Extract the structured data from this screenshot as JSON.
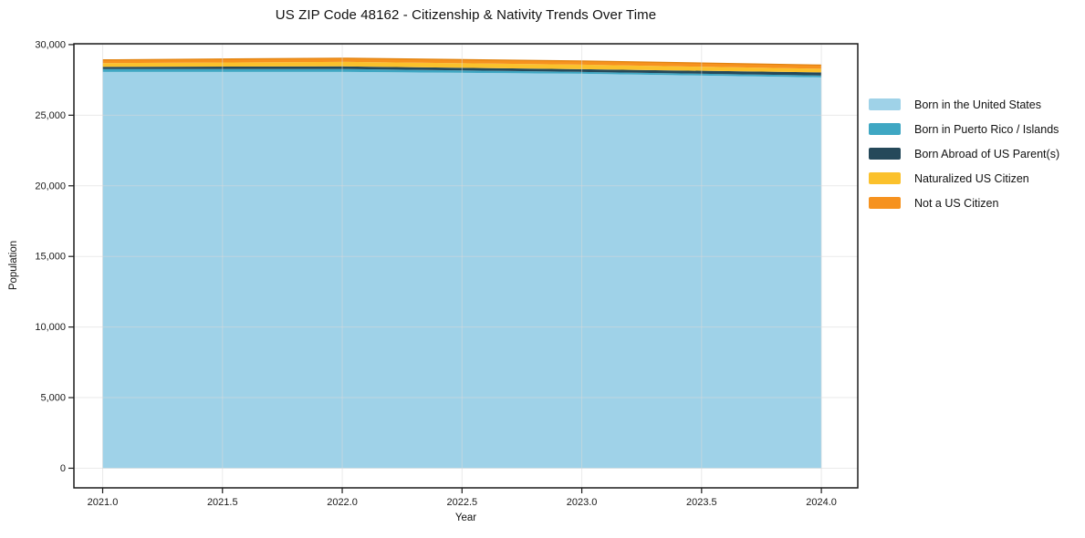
{
  "chart_data": {
    "type": "area",
    "stacked": true,
    "title": "US ZIP Code 48162 - Citizenship & Nativity Trends Over Time",
    "xlabel": "Year",
    "ylabel": "Population",
    "x": [
      2021,
      2022,
      2023,
      2024
    ],
    "series": [
      {
        "name": "Born in the United States",
        "color": "#9fd2e8",
        "values": [
          28070,
          28070,
          27940,
          27680
        ]
      },
      {
        "name": "Born in Puerto Rico / Islands",
        "color": "#3fa7c3",
        "values": [
          200,
          200,
          130,
          130
        ]
      },
      {
        "name": "Born Abroad of US Parent(s)",
        "color": "#25495a",
        "values": [
          160,
          190,
          190,
          220
        ]
      },
      {
        "name": "Naturalized US Citizen",
        "color": "#fbc12c",
        "values": [
          260,
          320,
          320,
          260
        ]
      },
      {
        "name": "Not a US Citizen",
        "color": "#f6921f",
        "values": [
          230,
          260,
          260,
          260
        ]
      }
    ],
    "totals": [
      28920,
      29040,
      28840,
      28550
    ],
    "x_ticks": [
      "2021.0",
      "2021.5",
      "2022.0",
      "2022.5",
      "2023.0",
      "2023.5",
      "2024.0"
    ],
    "x_tick_values": [
      2021,
      2021.5,
      2022,
      2022.5,
      2023,
      2023.5,
      2024
    ],
    "y_ticks": [
      "0",
      "5,000",
      "10,000",
      "15,000",
      "20,000",
      "25,000",
      "30,000"
    ],
    "y_tick_values": [
      0,
      5000,
      10000,
      15000,
      20000,
      25000,
      30000
    ],
    "xlim": [
      2020.88,
      2024.152
    ],
    "ylim": [
      -1390,
      30060
    ],
    "grid": true,
    "legend_position": "right",
    "colors": {
      "grid": "#d9d9d9",
      "spine": "#1a1a1a",
      "tick_text": "#1a1a1a",
      "stack_top_edge": "#e0820e",
      "background": "#ffffff"
    }
  }
}
